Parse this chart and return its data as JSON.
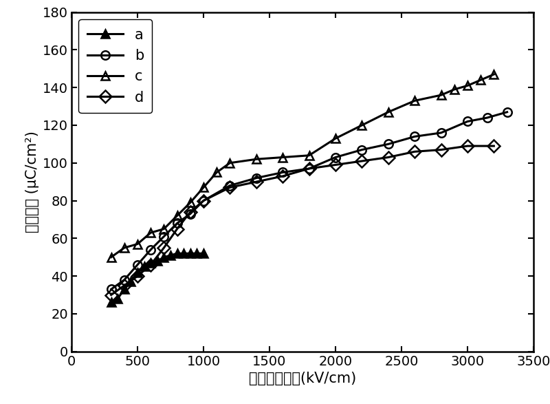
{
  "series_a": {
    "label": "a",
    "x": [
      300,
      350,
      400,
      450,
      500,
      550,
      600,
      650,
      700,
      750,
      800,
      850,
      900,
      950,
      1000
    ],
    "y": [
      26,
      28,
      33,
      37,
      42,
      45,
      47,
      48,
      50,
      51,
      52,
      52,
      52,
      52,
      52
    ],
    "marker": "^",
    "fillstyle": "full",
    "color": "black"
  },
  "series_b": {
    "label": "b",
    "x": [
      300,
      400,
      500,
      600,
      700,
      800,
      900,
      1000,
      1200,
      1400,
      1600,
      1800,
      2000,
      2200,
      2400,
      2600,
      2800,
      3000,
      3150,
      3300
    ],
    "y": [
      33,
      38,
      46,
      54,
      61,
      68,
      73,
      80,
      88,
      92,
      95,
      97,
      103,
      107,
      110,
      114,
      116,
      122,
      124,
      127
    ],
    "marker": "o",
    "fillstyle": "none",
    "color": "black"
  },
  "series_c": {
    "label": "c",
    "x": [
      300,
      400,
      500,
      600,
      700,
      800,
      900,
      1000,
      1100,
      1200,
      1400,
      1600,
      1800,
      2000,
      2200,
      2400,
      2600,
      2800,
      2900,
      3000,
      3100,
      3200
    ],
    "y": [
      50,
      55,
      57,
      63,
      65,
      72,
      79,
      87,
      95,
      100,
      102,
      103,
      104,
      113,
      120,
      127,
      133,
      136,
      139,
      141,
      144,
      147
    ],
    "marker": "^",
    "fillstyle": "none",
    "color": "black"
  },
  "series_d": {
    "label": "d",
    "x": [
      300,
      400,
      500,
      600,
      700,
      800,
      900,
      1000,
      1200,
      1400,
      1600,
      1800,
      2000,
      2200,
      2400,
      2600,
      2800,
      3000,
      3200
    ],
    "y": [
      30,
      35,
      40,
      46,
      55,
      65,
      74,
      80,
      87,
      90,
      93,
      97,
      99,
      101,
      103,
      106,
      107,
      109,
      109
    ],
    "marker": "D",
    "fillstyle": "none",
    "color": "black"
  },
  "xlabel": "外加直流电场(kV/cm)",
  "ylabel": "极化强度 (μC/cm²)",
  "xlim": [
    0,
    3500
  ],
  "ylim": [
    0,
    180
  ],
  "xticks": [
    0,
    500,
    1000,
    1500,
    2000,
    2500,
    3000,
    3500
  ],
  "yticks": [
    0,
    20,
    40,
    60,
    80,
    100,
    120,
    140,
    160,
    180
  ],
  "linewidth": 2.2,
  "markersize": 9,
  "legend_fontsize": 15,
  "axis_fontsize": 15,
  "tick_fontsize": 14
}
